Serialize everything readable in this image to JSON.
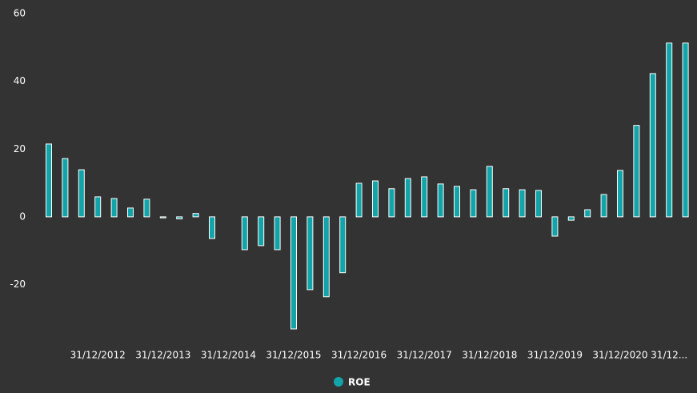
{
  "chart_data": {
    "type": "bar",
    "categories": [
      null,
      null,
      null,
      "31/12/2012",
      null,
      null,
      null,
      "31/12/2013",
      null,
      null,
      null,
      "31/12/2014",
      null,
      null,
      null,
      "31/12/2015",
      null,
      null,
      null,
      "31/12/2016",
      null,
      null,
      null,
      "31/12/2017",
      null,
      null,
      null,
      "31/12/2018",
      null,
      null,
      null,
      "31/12/2019",
      null,
      null,
      null,
      "31/12/2020",
      null,
      null,
      "31/12...",
      null
    ],
    "series": [
      {
        "name": "ROE",
        "color": "#12a4a8",
        "values": [
          21.5,
          17.2,
          13.9,
          5.9,
          5.4,
          2.6,
          5.2,
          -0.3,
          -0.6,
          1.0,
          -6.4,
          null,
          -9.7,
          -8.5,
          -9.7,
          -33.1,
          -21.5,
          -23.6,
          -16.5,
          9.9,
          10.6,
          8.3,
          11.3,
          11.8,
          9.7,
          9.0,
          8.0,
          14.9,
          8.3,
          8.0,
          7.8,
          -5.7,
          -1.0,
          2.1,
          6.6,
          13.7,
          27.0,
          42.3,
          51.3,
          51.3
        ]
      }
    ],
    "ylim": [
      -35,
      60
    ],
    "yticks": [
      -20,
      0,
      20,
      40,
      60
    ],
    "grid": false,
    "legend": "bottom"
  }
}
